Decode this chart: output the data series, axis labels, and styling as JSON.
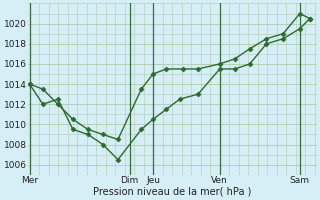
{
  "xlabel": "Pression niveau de la mer( hPa )",
  "background_color": "#d6eef5",
  "grid_color": "#b0ccb0",
  "line_color": "#2d6a2d",
  "ylim": [
    1005,
    1022
  ],
  "ytick_values": [
    1006,
    1008,
    1010,
    1012,
    1014,
    1016,
    1018,
    1020
  ],
  "xlim": [
    -0.05,
    8.6
  ],
  "x_day_labels": [
    "Mer",
    "Dim",
    "Jeu",
    "Ven",
    "Sam"
  ],
  "x_day_positions": [
    0.0,
    3.0,
    3.7,
    5.7,
    8.1
  ],
  "vlines_x": [
    0.0,
    3.0,
    3.7,
    5.7,
    8.1
  ],
  "line1_x": [
    0.0,
    0.4,
    0.85,
    1.3,
    1.75,
    2.2,
    2.65,
    3.35,
    3.7,
    4.1,
    4.6,
    5.05,
    5.7,
    6.15,
    6.6,
    7.1,
    7.6,
    8.1,
    8.4
  ],
  "line1_y": [
    1014,
    1013.5,
    1012,
    1010.5,
    1009.5,
    1009,
    1008.5,
    1013.5,
    1015,
    1015.5,
    1015.5,
    1015.5,
    1016,
    1016.5,
    1017.5,
    1018.5,
    1019,
    1021,
    1020.5
  ],
  "line2_x": [
    0.0,
    0.4,
    0.85,
    1.3,
    1.75,
    2.2,
    2.65,
    3.35,
    3.7,
    4.1,
    4.5,
    5.05,
    5.7,
    6.15,
    6.6,
    7.1,
    7.6,
    8.1,
    8.4
  ],
  "line2_y": [
    1014,
    1012,
    1012.5,
    1009.5,
    1009,
    1008,
    1006.5,
    1009.5,
    1010.5,
    1011.5,
    1012.5,
    1013,
    1015.5,
    1015.5,
    1016,
    1018,
    1018.5,
    1019.5,
    1020.5
  ],
  "marker": "D",
  "markersize": 2.5,
  "linewidth": 1.0,
  "xlabel_fontsize": 7,
  "tick_fontsize": 6.5
}
